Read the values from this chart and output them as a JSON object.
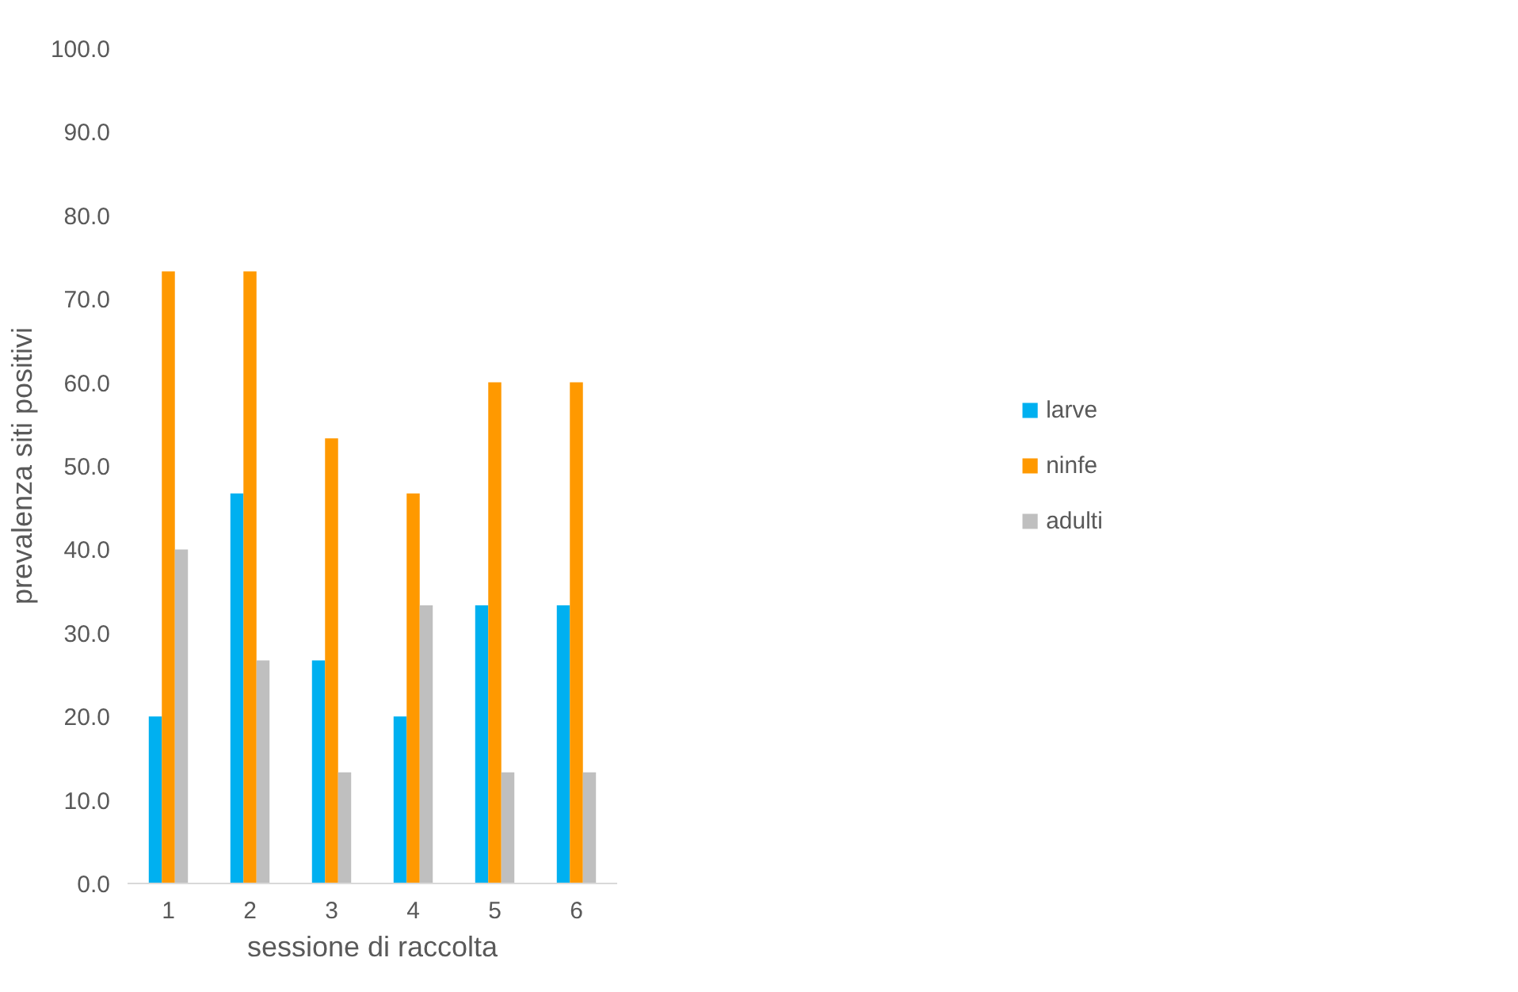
{
  "chart_data": {
    "type": "bar",
    "xlabel": "sessione di raccolta",
    "ylabel": "prevalenza siti positivi",
    "categories": [
      "1",
      "2",
      "3",
      "4",
      "5",
      "6"
    ],
    "series": [
      {
        "name": "larve",
        "color": "#00b0f0",
        "values": [
          20.0,
          46.7,
          26.7,
          20.0,
          33.3,
          33.3
        ]
      },
      {
        "name": "ninfe",
        "color": "#ff9900",
        "values": [
          73.3,
          73.3,
          53.3,
          46.7,
          60.0,
          60.0
        ]
      },
      {
        "name": "adulti",
        "color": "#bfbfbf",
        "values": [
          40.0,
          26.7,
          13.3,
          33.3,
          13.3,
          13.3
        ]
      }
    ],
    "ylim": [
      0,
      100
    ],
    "yticks": [
      {
        "value": 0,
        "label": "0.0"
      },
      {
        "value": 10,
        "label": "10.0"
      },
      {
        "value": 20,
        "label": "20.0"
      },
      {
        "value": 30,
        "label": "30.0"
      },
      {
        "value": 40,
        "label": "40.0"
      },
      {
        "value": 50,
        "label": "50.0"
      },
      {
        "value": 60,
        "label": "60.0"
      },
      {
        "value": 70,
        "label": "70.0"
      },
      {
        "value": 80,
        "label": "80.0"
      },
      {
        "value": 90,
        "label": "90.0"
      },
      {
        "value": 100,
        "label": "100.0"
      }
    ],
    "grid": false,
    "legend": "right"
  }
}
